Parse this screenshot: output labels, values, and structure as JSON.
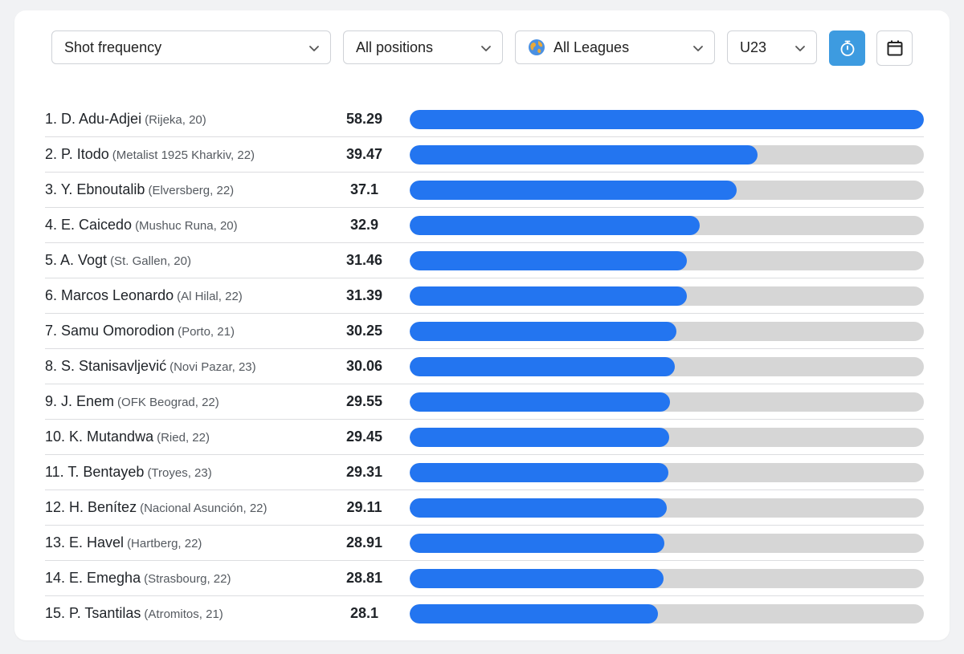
{
  "filters": {
    "metric": "Shot frequency",
    "position": "All positions",
    "league": "All Leagues",
    "age_group": "U23"
  },
  "icons": {
    "stopwatch": "stopwatch-icon",
    "calendar": "calendar-icon",
    "globe": "globe-icon",
    "chevron": "chevron-down-icon"
  },
  "colors": {
    "bar_fill": "#2375f0",
    "bar_track": "#d6d6d6",
    "active_button": "#3d9be0"
  },
  "chart_data": {
    "type": "bar",
    "title": "Shot frequency",
    "xlim": [
      0,
      58.29
    ],
    "rows": [
      {
        "rank_name": "1. D. Adu-Adjei",
        "meta": "(Rijeka, 20)",
        "value": 58.29
      },
      {
        "rank_name": "2. P. Itodo",
        "meta": "(Metalist 1925 Kharkiv, 22)",
        "value": 39.47
      },
      {
        "rank_name": "3. Y. Ebnoutalib",
        "meta": "(Elversberg, 22)",
        "value": 37.1
      },
      {
        "rank_name": "4. E. Caicedo",
        "meta": "(Mushuc Runa, 20)",
        "value": 32.9
      },
      {
        "rank_name": "5. A. Vogt",
        "meta": "(St. Gallen, 20)",
        "value": 31.46
      },
      {
        "rank_name": "6. Marcos Leonardo",
        "meta": "(Al Hilal, 22)",
        "value": 31.39
      },
      {
        "rank_name": "7. Samu Omorodion",
        "meta": "(Porto, 21)",
        "value": 30.25
      },
      {
        "rank_name": "8. S. Stanisavljević",
        "meta": "(Novi Pazar, 23)",
        "value": 30.06
      },
      {
        "rank_name": "9. J. Enem",
        "meta": "(OFK Beograd, 22)",
        "value": 29.55
      },
      {
        "rank_name": "10. K. Mutandwa",
        "meta": "(Ried, 22)",
        "value": 29.45
      },
      {
        "rank_name": "11. T. Bentayeb",
        "meta": "(Troyes, 23)",
        "value": 29.31
      },
      {
        "rank_name": "12. H. Benítez",
        "meta": "(Nacional Asunción, 22)",
        "value": 29.11
      },
      {
        "rank_name": "13. E. Havel",
        "meta": "(Hartberg, 22)",
        "value": 28.91
      },
      {
        "rank_name": "14. E. Emegha",
        "meta": "(Strasbourg, 22)",
        "value": 28.81
      },
      {
        "rank_name": "15. P. Tsantilas",
        "meta": "(Atromitos, 21)",
        "value": 28.1
      }
    ]
  }
}
